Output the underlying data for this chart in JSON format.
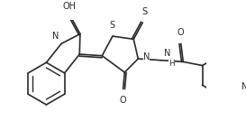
{
  "bg_color": "#ffffff",
  "line_color": "#2a2a2a",
  "line_width": 1.2,
  "font_size": 7.0,
  "figsize": [
    2.73,
    1.45
  ],
  "dpi": 100,
  "xlim": [
    0,
    273
  ],
  "ylim": [
    0,
    145
  ]
}
